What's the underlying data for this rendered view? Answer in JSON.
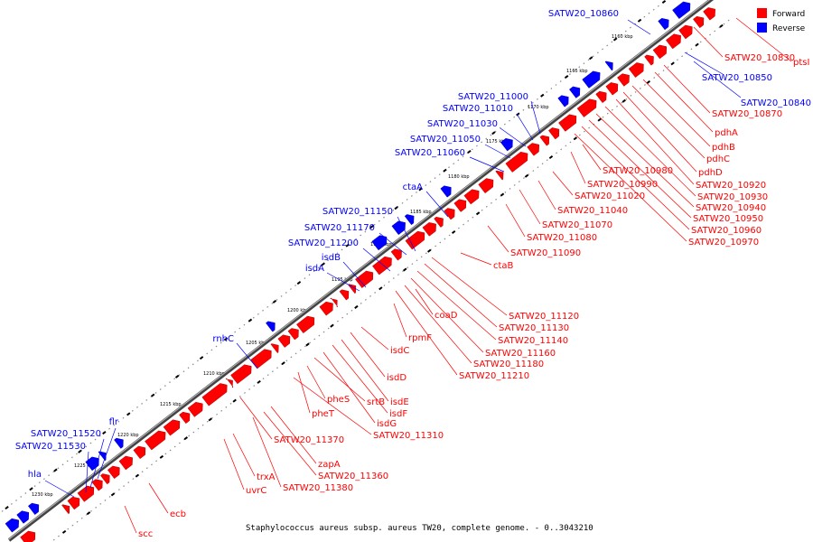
{
  "caption": "Staphylococcus aureus subsp. aureus TW20, complete genome. - 0..3043210",
  "legend": {
    "forward": "Forward",
    "reverse": "Reverse"
  },
  "colors": {
    "forward": "#ff0000",
    "reverse": "#0000ff",
    "backbone": "#555555"
  },
  "ticks": [
    "1160 kbp",
    "1165 kbp",
    "1170 kbp",
    "1175 kbp",
    "1180 kbp",
    "1185 kbp",
    "1190 kbp",
    "1195 kbp",
    "1200 kbp",
    "1205 kbp",
    "1210 kbp",
    "1215 kbp",
    "1220 kbp",
    "1225 kbp",
    "1230 kbp"
  ],
  "reverse_labels": [
    "SATW20_10860",
    "SATW20_10850",
    "SATW20_10840",
    "SATW20_11000",
    "SATW20_11010",
    "SATW20_11030",
    "SATW20_11050",
    "SATW20_11060",
    "ctaA",
    "SATW20_11150",
    "SATW20_11170",
    "SATW20_11200",
    "isdB",
    "isdA",
    "rnhC",
    "flr",
    "SATW20_11520",
    "SATW20_11530",
    "hla"
  ],
  "forward_labels": [
    "SATW20_10830",
    "ptsI",
    "SATW20_10870",
    "pdhA",
    "pdhB",
    "pdhC",
    "pdhD",
    "SATW20_10920",
    "SATW20_10930",
    "SATW20_10940",
    "SATW20_10950",
    "SATW20_10960",
    "SATW20_10970",
    "SATW20_10980",
    "SATW20_10990",
    "SATW20_11020",
    "SATW20_11040",
    "SATW20_11070",
    "SATW20_11080",
    "SATW20_11090",
    "ctaB",
    "SATW20_11120",
    "SATW20_11130",
    "SATW20_11140",
    "SATW20_11160",
    "SATW20_11180",
    "SATW20_11210",
    "coaD",
    "rpmF",
    "isdC",
    "isdD",
    "isdE",
    "isdF",
    "isdG",
    "srtB",
    "pheS",
    "pheT",
    "SATW20_11310",
    "SATW20_11370",
    "zapA",
    "SATW20_11360",
    "trxA",
    "SATW20_11380",
    "uvrC",
    "ecb",
    "scc"
  ]
}
